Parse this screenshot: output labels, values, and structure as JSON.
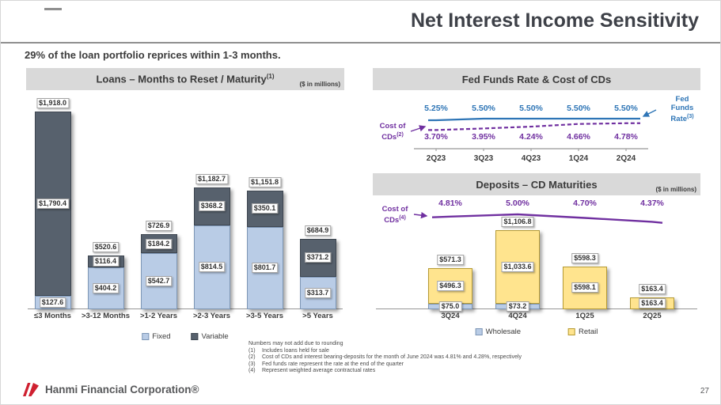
{
  "slide": {
    "title": "Net Interest Income Sensitivity",
    "subtitle": "29% of the loan portfolio reprices within 1-3 months.",
    "page_number": "27",
    "brand": "Hanmi Financial Corporation®"
  },
  "panels": {
    "loans": {
      "title": "Loans – Months to Reset / Maturity",
      "sup": "(1)",
      "units": "($ in millions)"
    },
    "fed": {
      "title": "Fed Funds Rate & Cost of CDs"
    },
    "deposits": {
      "title": "Deposits – CD Maturities",
      "units": "($ in millions)"
    }
  },
  "annotations": {
    "fed_cost": {
      "line1": "Cost of",
      "line2": "CDs",
      "sup": "(2)"
    },
    "fed_rate": {
      "line1": "Fed",
      "line2": "Funds",
      "line3": "Rate",
      "sup": "(3)"
    },
    "dep_cost": {
      "line1": "Cost of",
      "line2": "CDs",
      "sup": "(4)"
    }
  },
  "footnotes": {
    "note": "Numbers may not add due to rounding",
    "items": [
      {
        "num": "(1)",
        "text": "Includes loans held for sale"
      },
      {
        "num": "(2)",
        "text": "Cost of CDs and interest bearing-deposits for the month of June 2024 was 4.81% and 4.28%, respectively"
      },
      {
        "num": "(3)",
        "text": "Fed funds rate represent the rate at the end of the quarter"
      },
      {
        "num": "(4)",
        "text": "Represent weighted average contractual rates"
      }
    ]
  },
  "colors": {
    "fixed_blue": "#b9cce6",
    "variable_dark": "#57616d",
    "retail_yellow": "#ffe48e",
    "wholesale_blue": "#b9cce6",
    "fed_line_blue": "#2e75b6",
    "cds_line_purple": "#7030a0",
    "header_gray": "#d9d9d9",
    "logo_red": "#cf2030"
  },
  "chart_data": [
    {
      "id": "loans",
      "type": "bar",
      "stacked": true,
      "title": "Loans – Months to Reset / Maturity(1)",
      "units": "$ in millions",
      "legend_position": "bottom",
      "ylim": [
        0,
        1918
      ],
      "categories": [
        "≤3 Months",
        ">3-12 Months",
        ">1-2 Years",
        ">2-3 Years",
        ">3-5 Years",
        ">5 Years"
      ],
      "series": [
        {
          "name": "Fixed",
          "color": "#b9cce6",
          "border": "#7d96b5",
          "values": [
            127.6,
            404.2,
            542.7,
            814.5,
            801.7,
            313.7
          ],
          "labels": [
            "$127.6",
            "$404.2",
            "$542.7",
            "$814.5",
            "$801.7",
            "$313.7"
          ]
        },
        {
          "name": "Variable",
          "color": "#57616d",
          "border": "#3e4650",
          "values": [
            1790.4,
            116.4,
            184.2,
            368.2,
            350.1,
            371.2
          ],
          "labels": [
            "$1,790.4",
            "$116.4",
            "$184.2",
            "$368.2",
            "$350.1",
            "$371.2"
          ]
        }
      ],
      "totals": [
        1918.0,
        520.6,
        726.9,
        1182.7,
        1151.8,
        684.9
      ],
      "total_labels": [
        "$1,918.0",
        "$520.6",
        "$726.9",
        "$1,182.7",
        "$1,151.8",
        "$684.9"
      ]
    },
    {
      "id": "fedfunds",
      "type": "line",
      "title": "Fed Funds Rate & Cost of CDs",
      "categories": [
        "2Q23",
        "3Q23",
        "4Q23",
        "1Q24",
        "2Q24"
      ],
      "series": [
        {
          "name": "Fed Funds Rate(3)",
          "color": "#2e75b6",
          "dashed": false,
          "label_position": "above",
          "values": [
            5.25,
            5.5,
            5.5,
            5.5,
            5.5
          ],
          "labels": [
            "5.25%",
            "5.50%",
            "5.50%",
            "5.50%",
            "5.50%"
          ]
        },
        {
          "name": "Cost of CDs(2)",
          "color": "#7030a0",
          "dashed": true,
          "label_position": "below",
          "values": [
            3.7,
            3.95,
            4.24,
            4.66,
            4.78
          ],
          "labels": [
            "3.70%",
            "3.95%",
            "4.24%",
            "4.66%",
            "4.78%"
          ]
        }
      ]
    },
    {
      "id": "deposits",
      "type": "bar",
      "stacked": true,
      "title": "Deposits – CD Maturities",
      "units": "$ in millions",
      "legend_position": "bottom",
      "categories": [
        "3Q24",
        "4Q24",
        "1Q25",
        "2Q25"
      ],
      "series": [
        {
          "name": "Wholesale",
          "color": "#b9cce6",
          "border": "#7d96b5",
          "values": [
            75.0,
            73.2,
            0.2,
            0.0
          ],
          "labels": [
            "$75.0",
            "$73.2",
            "",
            ""
          ]
        },
        {
          "name": "Retail",
          "color": "#ffe48e",
          "border": "#b59a33",
          "values": [
            496.3,
            1033.6,
            598.1,
            163.4
          ],
          "labels": [
            "$496.3",
            "$1,033.6",
            "$598.1",
            "$163.4"
          ]
        }
      ],
      "totals": [
        571.3,
        1106.8,
        598.3,
        163.4
      ],
      "total_labels": [
        "$571.3",
        "$1,106.8",
        "$598.3",
        "$163.4"
      ],
      "line_series": {
        "name": "Cost of CDs(4)",
        "color": "#7030a0",
        "values": [
          4.81,
          5.0,
          4.7,
          4.37
        ],
        "labels": [
          "4.81%",
          "5.00%",
          "4.70%",
          "4.37%"
        ]
      }
    }
  ]
}
